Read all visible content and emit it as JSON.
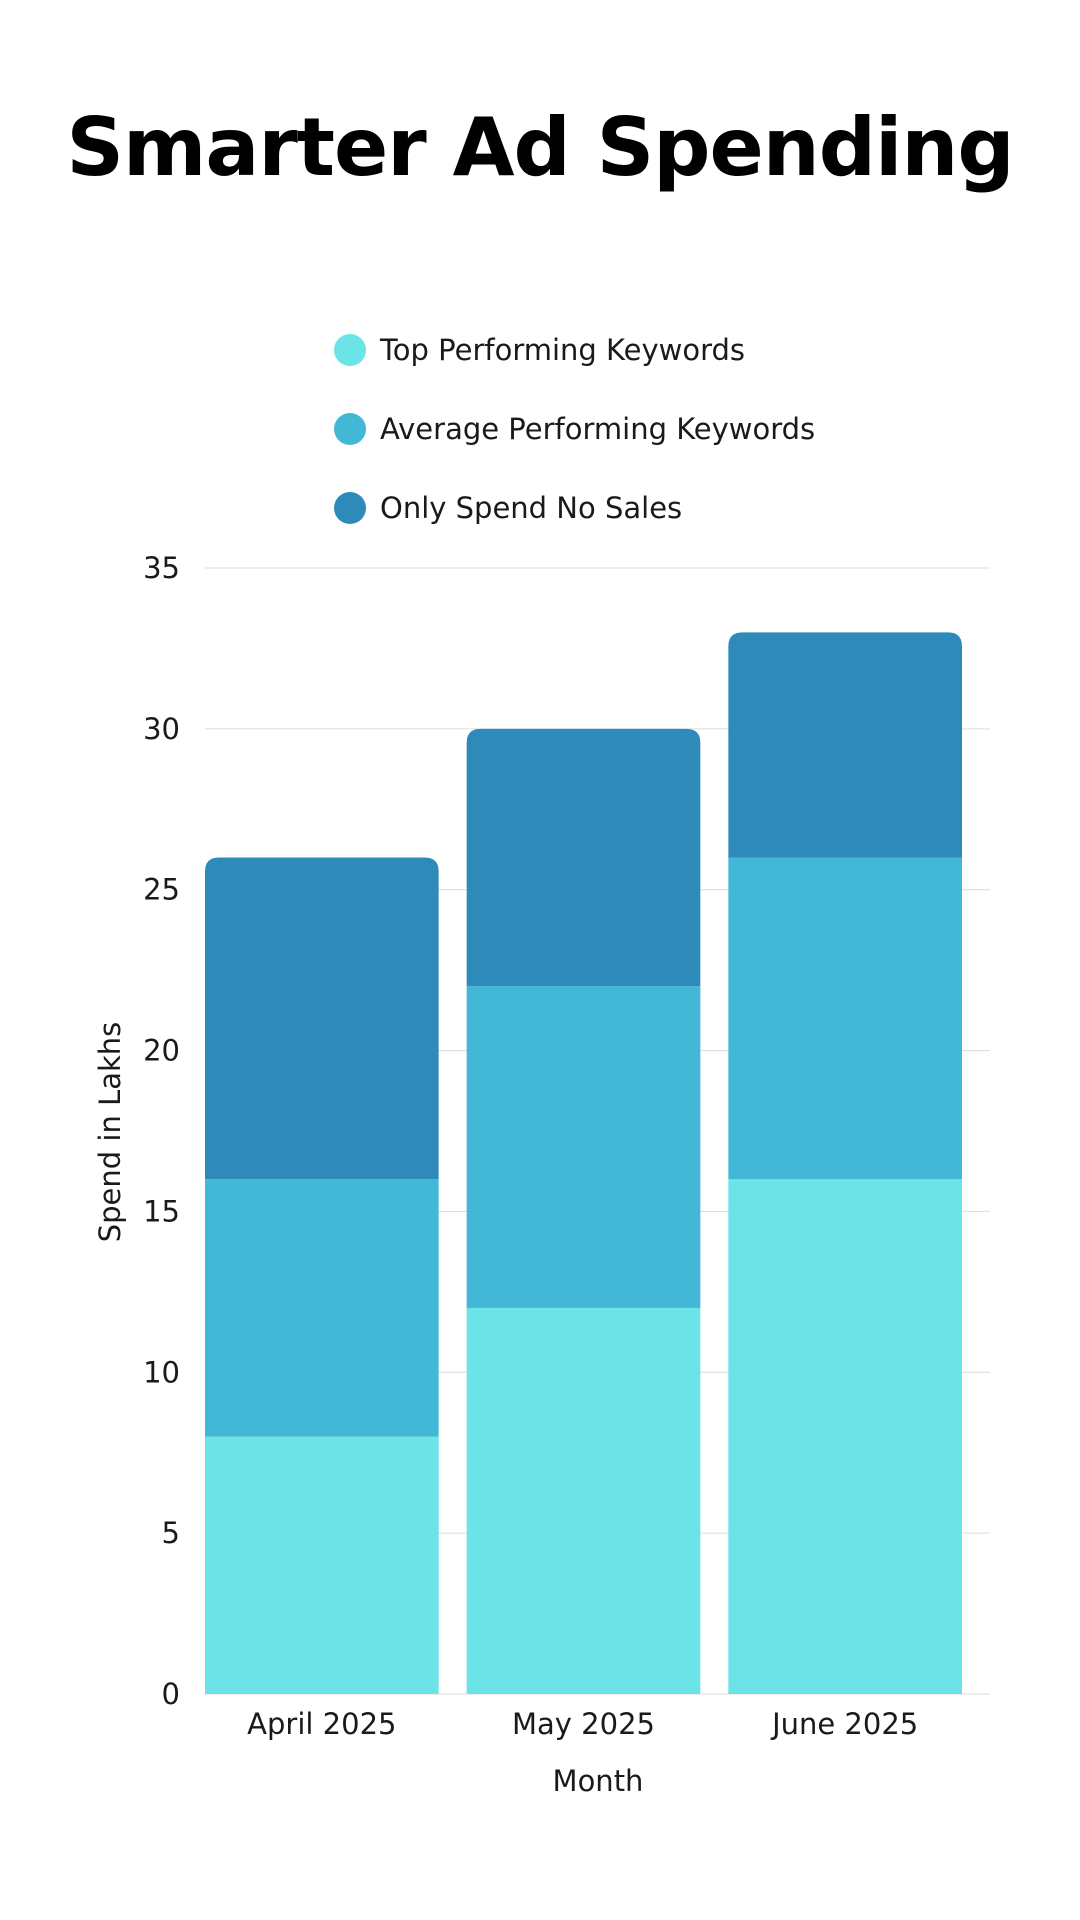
{
  "title": "Smarter Ad Spending",
  "chart_data": {
    "type": "bar",
    "stacked": true,
    "categories": [
      "April 2025",
      "May 2025",
      "June 2025"
    ],
    "series": [
      {
        "name": "Top Performing Keywords",
        "values": [
          8,
          12,
          16
        ],
        "color": "#6BE3E7"
      },
      {
        "name": "Average Performing Keywords",
        "values": [
          8,
          10,
          10
        ],
        "color": "#43B8D6"
      },
      {
        "name": "Only Spend No Sales",
        "values": [
          10,
          8,
          7
        ],
        "color": "#2E8BB9"
      }
    ],
    "xlabel": "Month",
    "ylabel": "Spend in Lakhs",
    "ylim": [
      0,
      35
    ],
    "yticks": [
      "0",
      "5",
      "10",
      "15",
      "20",
      "25",
      "30",
      "35"
    ],
    "grid": true,
    "legend_position": "top"
  }
}
